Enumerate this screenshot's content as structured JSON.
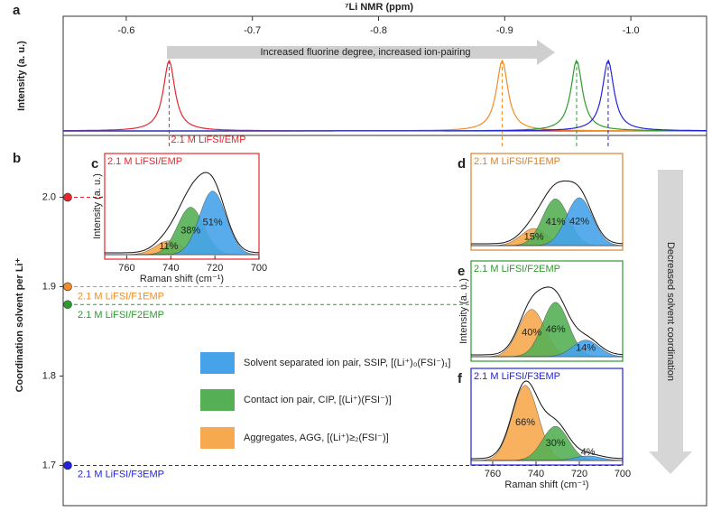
{
  "chart_data": [
    {
      "type": "nmr",
      "label": "a",
      "title": "⁷Li NMR (ppm)",
      "ylabel": "Intensity (a. u.)",
      "xlim": [
        -0.55,
        -1.06
      ],
      "xticks": [
        -0.6,
        -0.7,
        -0.8,
        -0.9,
        {
          "value": -1.0,
          "label": "-1.0"
        }
      ],
      "annotation": "Increased fluorine degree, increased ion-pairing",
      "peaks": [
        {
          "x": -0.634,
          "color": "#e8262b",
          "label": "2.1 M LiFSI/EMP"
        },
        {
          "x": -0.898,
          "color": "#f28c28"
        },
        {
          "x": -0.957,
          "color": "#2e9a2e"
        },
        {
          "x": -0.982,
          "color": "#2323d8"
        }
      ]
    },
    {
      "type": "scatter",
      "label": "b",
      "ylabel": "Coordination solvent per Li⁺",
      "ylim": [
        1.655,
        2.054
      ],
      "yticks": [
        1.7,
        1.8,
        1.9,
        {
          "value": 2.0,
          "label": "2.0"
        }
      ],
      "points": [
        {
          "y": 2.0,
          "color": "#e8262b"
        },
        {
          "y": 1.9,
          "color": "#f28c28",
          "label": "2.1 M LiFSI/F1EMP"
        },
        {
          "y": 1.88,
          "color": "#2e9a2e",
          "label": "2.1 M LiFSI/F2EMP"
        },
        {
          "y": 1.7,
          "color": "#2323d8",
          "label": "2.1 M LiFSI/F3EMP"
        }
      ],
      "legend": [
        {
          "name": "Solvent separated ion pair, SSIP, [(Li⁺)₀(FSI⁻)₁]",
          "color": "#46a3ea"
        },
        {
          "name": "Contact ion pair, CIP, [(Li⁺)(FSI⁻)]",
          "color": "#55b055"
        },
        {
          "name": "Aggregates, AGG, [(Li⁺)≥₂(FSI⁻)]",
          "color": "#f6a94e"
        }
      ],
      "arrow_text": "Decreased solvent coordination"
    },
    {
      "type": "raman",
      "label": "c",
      "title": "2.1 M LiFSI/EMP",
      "color": "#e8262b",
      "xlabel": "Raman shift (cm⁻¹)",
      "ylabel": "Intensity (a. u.)",
      "xlim": [
        770,
        700
      ],
      "xticks": [
        760,
        740,
        720,
        700
      ],
      "centers": [
        741,
        731,
        721
      ],
      "colors": [
        "#f6a94e",
        "#55b055",
        "#46a3ea"
      ],
      "values": [
        11,
        38,
        51
      ],
      "value_labels": [
        "11%",
        "38%",
        "51%"
      ]
    },
    {
      "type": "raman",
      "label": "d",
      "title": "2.1 M LiFSI/F1EMP",
      "color": "#d9822b",
      "xlim": [
        770,
        700
      ],
      "centers": [
        741,
        731,
        720
      ],
      "colors": [
        "#f6a94e",
        "#55b055",
        "#46a3ea"
      ],
      "values": [
        15,
        41,
        42
      ],
      "value_labels": [
        "15%",
        "41%",
        "42%"
      ]
    },
    {
      "type": "raman",
      "label": "e",
      "title": "2.1 M LiFSI/F2EMP",
      "color": "#2e9a2e",
      "ylabel": "Intensity (a. u.)",
      "xlim": [
        770,
        700
      ],
      "centers": [
        742,
        731,
        717
      ],
      "colors": [
        "#f6a94e",
        "#55b055",
        "#46a3ea"
      ],
      "values": [
        40,
        46,
        14
      ],
      "value_labels": [
        "40%",
        "46%",
        "14%"
      ]
    },
    {
      "type": "raman",
      "label": "f",
      "title": "2.1 M LiFSI/F3EMP",
      "color": "#2323d8",
      "xlabel": "Raman shift (cm⁻¹)",
      "xlim": [
        770,
        700
      ],
      "xticks": [
        760,
        740,
        720,
        700
      ],
      "centers": [
        745,
        731,
        716
      ],
      "colors": [
        "#f6a94e",
        "#55b055",
        "#46a3ea"
      ],
      "values": [
        66,
        30,
        4
      ],
      "value_labels": [
        "66%",
        "30%",
        "4%"
      ]
    }
  ]
}
